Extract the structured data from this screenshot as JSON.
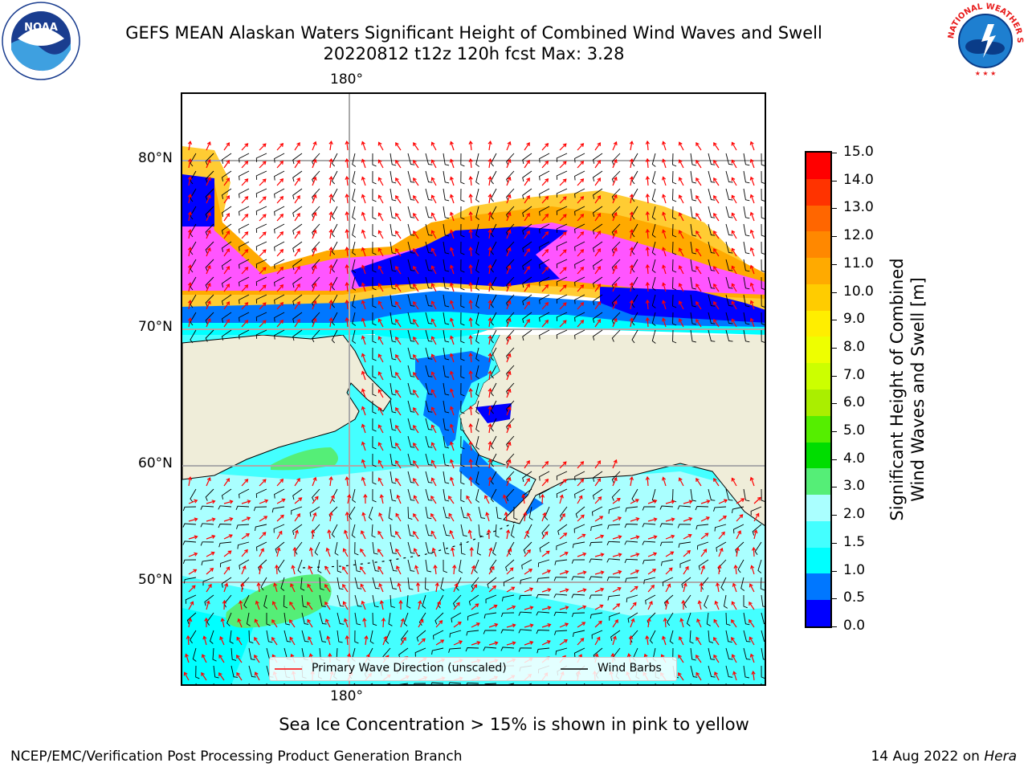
{
  "header": {
    "title_line1": "GEFS MEAN Alaskan Waters Significant Height of Combined Wind Waves and Swell",
    "title_line2": "20220812 t12z 120h fcst   Max: 3.28"
  },
  "logos": {
    "left": {
      "name": "noaa-logo",
      "text": "NOAA"
    },
    "right": {
      "name": "nws-logo",
      "ring_text": "NATIONAL WEATHER SERVICE"
    }
  },
  "map": {
    "longitude_label_top": "180°",
    "longitude_label_bottom": "180°",
    "latitude_labels": [
      "80°N",
      "70°N",
      "60°N",
      "50°N"
    ],
    "legend": {
      "wave_direction": "Primary Wave Direction (unscaled)",
      "wind_barbs": "Wind Barbs"
    },
    "colors": {
      "ocean_light": "#aaffff",
      "ocean_cyan": "#00ffff",
      "ocean_mid": "#44ffff",
      "ocean_blue": "#0077ff",
      "ocean_deep": "#0000ff",
      "green": "#55ee77",
      "land": "#efedd9",
      "ice_pink": "#ff55ff",
      "ice_orange": "#ffaa00",
      "ice_yellow": "#ffcc33",
      "arrow": "#ff0000",
      "barb": "#000000"
    }
  },
  "colorbar": {
    "label_line1": "Significant Height of Combined",
    "label_line2": "Wind Waves and Swell [m]",
    "ticks": [
      "15.0",
      "14.0",
      "13.0",
      "12.0",
      "11.0",
      "10.0",
      "9.0",
      "8.0",
      "7.0",
      "6.0",
      "5.0",
      "4.0",
      "3.0",
      "2.0",
      "1.5",
      "1.0",
      "0.5",
      "0.0"
    ],
    "colors": [
      "#ff0000",
      "#ff3300",
      "#ff6600",
      "#ff8800",
      "#ffaa00",
      "#ffcc00",
      "#ffee00",
      "#eeff00",
      "#ccff00",
      "#aaee00",
      "#55ee00",
      "#00dd00",
      "#55ee77",
      "#aaffff",
      "#44ffff",
      "#00ffff",
      "#0077ff",
      "#0000ff"
    ]
  },
  "footer": {
    "subtitle": "Sea Ice Concentration > 15% is shown in pink to yellow",
    "left": "NCEP/EMC/Verification Post Processing Product Generation Branch",
    "right_date": "14 Aug 2022 on ",
    "right_host": "Hera"
  }
}
